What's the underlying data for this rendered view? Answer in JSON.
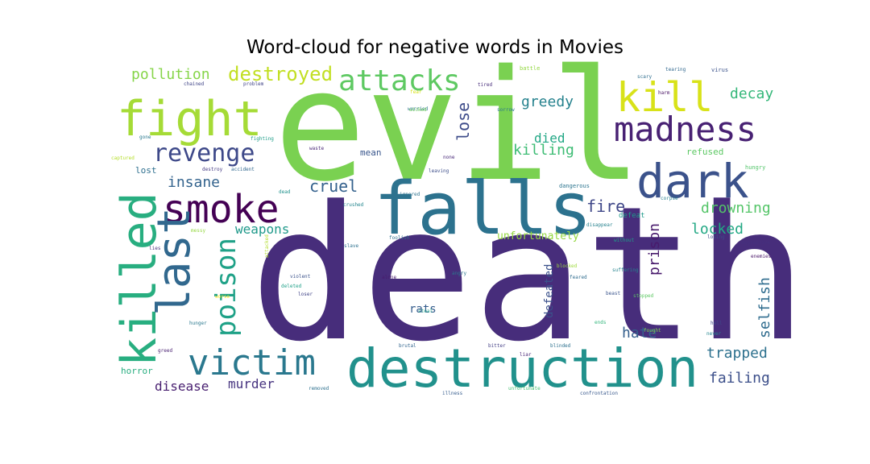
{
  "title": "Word-cloud for negative words in Movies",
  "words": [
    {
      "text": "death",
      "color": "#472d7b"
    },
    {
      "text": "evil",
      "color": "#7ad151"
    },
    {
      "text": "falls",
      "color": "#2c728e"
    },
    {
      "text": "destruction",
      "color": "#21918c"
    },
    {
      "text": "fight",
      "color": "#a5db36"
    },
    {
      "text": "dark",
      "color": "#3b528b"
    },
    {
      "text": "killed",
      "color": "#28ae80"
    },
    {
      "text": "madness",
      "color": "#482173"
    },
    {
      "text": "kill",
      "color": "#d8e219"
    },
    {
      "text": "smoke",
      "color": "#440154"
    },
    {
      "text": "last",
      "color": "#31688e"
    },
    {
      "text": "victim",
      "color": "#2a788e"
    },
    {
      "text": "revenge",
      "color": "#3e4989"
    },
    {
      "text": "attacks",
      "color": "#5ec962"
    },
    {
      "text": "poison",
      "color": "#1fa187"
    },
    {
      "text": "destroyed",
      "color": "#c2df23"
    },
    {
      "text": "pollution",
      "color": "#86d549"
    },
    {
      "text": "greedy",
      "color": "#26828e"
    },
    {
      "text": "decay",
      "color": "#35b779"
    },
    {
      "text": "lose",
      "color": "#3e4c8a"
    },
    {
      "text": "died",
      "color": "#22a785"
    },
    {
      "text": "killing",
      "color": "#3dbc74"
    },
    {
      "text": "insane",
      "color": "#33638d"
    },
    {
      "text": "cruel",
      "color": "#34618d"
    },
    {
      "text": "fire",
      "color": "#3f4788"
    },
    {
      "text": "drowning",
      "color": "#54c568"
    },
    {
      "text": "weapons",
      "color": "#1f998a"
    },
    {
      "text": "locked",
      "color": "#22a884"
    },
    {
      "text": "prison",
      "color": "#481a6c"
    },
    {
      "text": "unfortunately",
      "color": "#95d840"
    },
    {
      "text": "defeated",
      "color": "#3b518b"
    },
    {
      "text": "selfish",
      "color": "#2f6c8e"
    },
    {
      "text": "hate",
      "color": "#355f8d"
    },
    {
      "text": "trapped",
      "color": "#2d718e"
    },
    {
      "text": "failing",
      "color": "#3c4f8a"
    },
    {
      "text": "disease",
      "color": "#481f70"
    },
    {
      "text": "murder",
      "color": "#46337f"
    },
    {
      "text": "rats",
      "color": "#365d8d"
    },
    {
      "text": "mean",
      "color": "#39568c"
    },
    {
      "text": "refused",
      "color": "#5cc863"
    },
    {
      "text": "lost",
      "color": "#2e6f8e"
    },
    {
      "text": "horror",
      "color": "#28ae80"
    },
    {
      "text": "defeat",
      "color": "#1e9b8a"
    },
    {
      "text": "dangerous",
      "color": "#2b748e"
    },
    {
      "text": "chained",
      "color": "#404588"
    },
    {
      "text": "problem",
      "color": "#414487"
    },
    {
      "text": "fear",
      "color": "#d8e219"
    },
    {
      "text": "tired",
      "color": "#472c7a"
    },
    {
      "text": "battle",
      "color": "#93d741"
    },
    {
      "text": "scary",
      "color": "#2e6e8e"
    },
    {
      "text": "tearing",
      "color": "#31688e"
    },
    {
      "text": "virus",
      "color": "#3b528b"
    },
    {
      "text": "harm",
      "color": "#471063"
    },
    {
      "text": "worried",
      "color": "#2c738e"
    },
    {
      "text": "sorrow",
      "color": "#2a768e"
    },
    {
      "text": "wicked",
      "color": "#6ccd5a"
    },
    {
      "text": "gone",
      "color": "#2a788e"
    },
    {
      "text": "fighting",
      "color": "#1f9e89"
    },
    {
      "text": "captured",
      "color": "#b5de2b"
    },
    {
      "text": "waste",
      "color": "#482677"
    },
    {
      "text": "none",
      "color": "#482878"
    },
    {
      "text": "destroy",
      "color": "#443983"
    },
    {
      "text": "accident",
      "color": "#31688e"
    },
    {
      "text": "leaving",
      "color": "#3d4e8a"
    },
    {
      "text": "dead",
      "color": "#20928c"
    },
    {
      "text": "ignored",
      "color": "#2c728e"
    },
    {
      "text": "crushed",
      "color": "#24868e"
    },
    {
      "text": "hungry",
      "color": "#52c569"
    },
    {
      "text": "corpse",
      "color": "#277f8e"
    },
    {
      "text": "disappear",
      "color": "#26828e"
    },
    {
      "text": "without",
      "color": "#1f9f88"
    },
    {
      "text": "losing",
      "color": "#3e4a89"
    },
    {
      "text": "aggressive",
      "color": "#46307e"
    },
    {
      "text": "enemies",
      "color": "#481467"
    },
    {
      "text": "messy",
      "color": "#95d840"
    },
    {
      "text": "lies",
      "color": "#472c7a"
    },
    {
      "text": "foolish",
      "color": "#2e6f8e"
    },
    {
      "text": "slave",
      "color": "#2d718e"
    },
    {
      "text": "attacked",
      "color": "#b2dd2d"
    },
    {
      "text": "violent",
      "color": "#3b528b"
    },
    {
      "text": "deleted",
      "color": "#1fa088"
    },
    {
      "text": "loser",
      "color": "#414487"
    },
    {
      "text": "alone",
      "color": "#481b6d"
    },
    {
      "text": "angry",
      "color": "#2a778e"
    },
    {
      "text": "blocked",
      "color": "#9dd93b"
    },
    {
      "text": "feared",
      "color": "#2f6c8e"
    },
    {
      "text": "suffering",
      "color": "#25838e"
    },
    {
      "text": "beast",
      "color": "#3a548c"
    },
    {
      "text": "stopped",
      "color": "#5cc863"
    },
    {
      "text": "worse",
      "color": "#fde725"
    },
    {
      "text": "steal",
      "color": "#1f9e89"
    },
    {
      "text": "hunger",
      "color": "#2a788e"
    },
    {
      "text": "greed",
      "color": "#481f70"
    },
    {
      "text": "brutal",
      "color": "#32658e"
    },
    {
      "text": "bitter",
      "color": "#433e85"
    },
    {
      "text": "ends",
      "color": "#31b57b"
    },
    {
      "text": "liar",
      "color": "#482576"
    },
    {
      "text": "blinded",
      "color": "#2d708e"
    },
    {
      "text": "fought",
      "color": "#7fd34e"
    },
    {
      "text": "hell",
      "color": "#3f4889"
    },
    {
      "text": "never",
      "color": "#24868e"
    },
    {
      "text": "removed",
      "color": "#2d708e"
    },
    {
      "text": "illness",
      "color": "#365c8d"
    },
    {
      "text": "unfortunate",
      "color": "#44bf70"
    },
    {
      "text": "confrontation",
      "color": "#38588c"
    }
  ]
}
